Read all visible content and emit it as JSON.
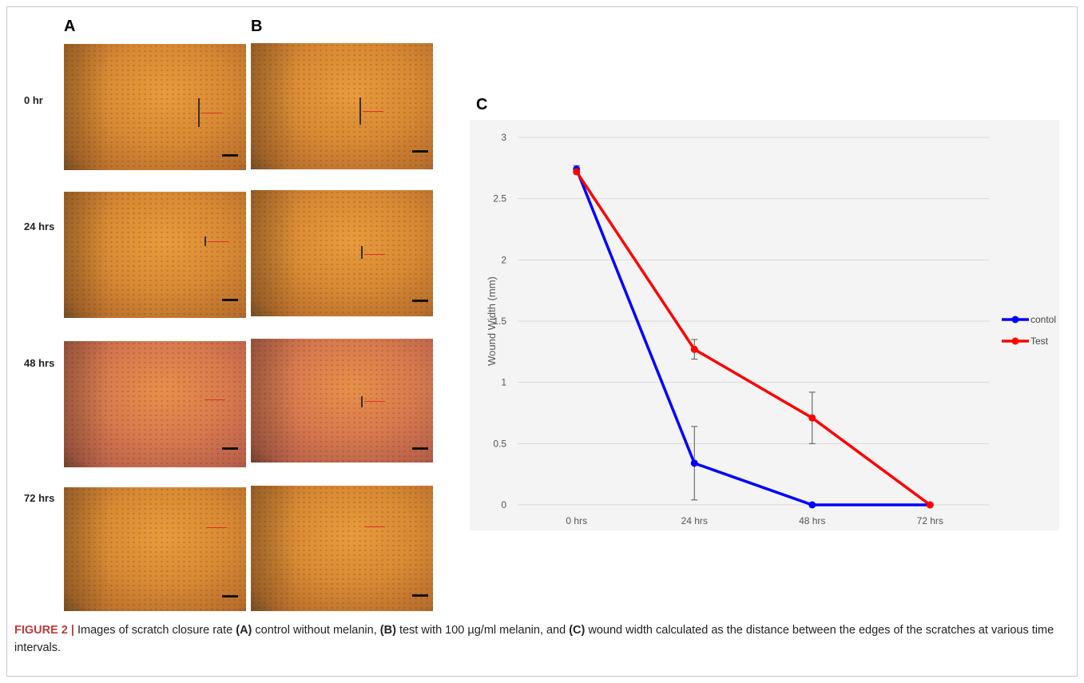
{
  "figure": {
    "panel_a_label": "A",
    "panel_b_label": "B",
    "panel_c_label": "C",
    "time_labels": [
      "0 hr",
      "24 hrs",
      "48 hrs",
      "72 hrs"
    ],
    "caption": {
      "figure_label": "FIGURE 2 |",
      "text_1": " Images of scratch closure rate ",
      "ref_a": "(A)",
      "text_2": " control without melanin, ",
      "ref_b": "(B)",
      "text_3": " test with 100 µg/ml melanin, and ",
      "ref_c": "(C)",
      "text_4": " wound width calculated as the distance between the edges of the scratches at various time intervals."
    }
  },
  "chart_data": {
    "type": "line",
    "categories": [
      "0 hrs",
      "24 hrs",
      "48 hrs",
      "72 hrs"
    ],
    "ylabel": "Wound Width (mm)",
    "xlabel": "",
    "ylim": [
      0,
      3
    ],
    "yticks": [
      "0",
      "0.5",
      "1",
      "1.5",
      "2",
      "2.5",
      "3"
    ],
    "grid": true,
    "legend_position": "right",
    "series": [
      {
        "name": "contol",
        "color": "#0000ff",
        "values": [
          2.74,
          0.34,
          0.0,
          0.0
        ],
        "errors": [
          0.03,
          0.3,
          0,
          0
        ]
      },
      {
        "name": "Test",
        "color": "#ff0000",
        "values": [
          2.72,
          1.27,
          0.71,
          0.0
        ],
        "errors": [
          0.02,
          0.08,
          0.21,
          0
        ]
      }
    ]
  }
}
